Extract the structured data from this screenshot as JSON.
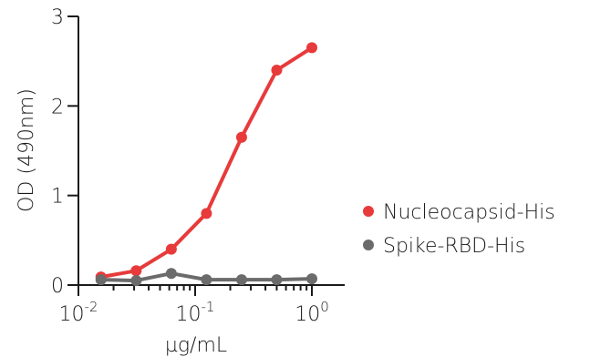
{
  "chart_data": {
    "type": "line",
    "x_scale": "log",
    "xlabel": "µg/mL",
    "ylabel": "OD (490nm)",
    "x_ticks": [
      {
        "value": 0.01,
        "base": "10",
        "exp": "-2"
      },
      {
        "value": 0.1,
        "base": "10",
        "exp": "-1"
      },
      {
        "value": 1,
        "base": "10",
        "exp": "0"
      }
    ],
    "xlim": [
      0.01,
      1.5
    ],
    "ylim": [
      0,
      3
    ],
    "y_ticks": [
      "0",
      "1",
      "2",
      "3"
    ],
    "grid": false,
    "legend_position": "right",
    "series": [
      {
        "name": "Nucleocapsid-His",
        "color": "#e83a3a",
        "x": [
          0.0156,
          0.03125,
          0.0625,
          0.125,
          0.25,
          0.5,
          1.0
        ],
        "y": [
          0.09,
          0.16,
          0.4,
          0.8,
          1.65,
          2.4,
          2.65
        ]
      },
      {
        "name": "Spike-RBD-His",
        "color": "#6b6b6b",
        "x": [
          0.0156,
          0.03125,
          0.0625,
          0.125,
          0.25,
          0.5,
          1.0
        ],
        "y": [
          0.06,
          0.05,
          0.13,
          0.06,
          0.06,
          0.06,
          0.07
        ]
      }
    ]
  }
}
